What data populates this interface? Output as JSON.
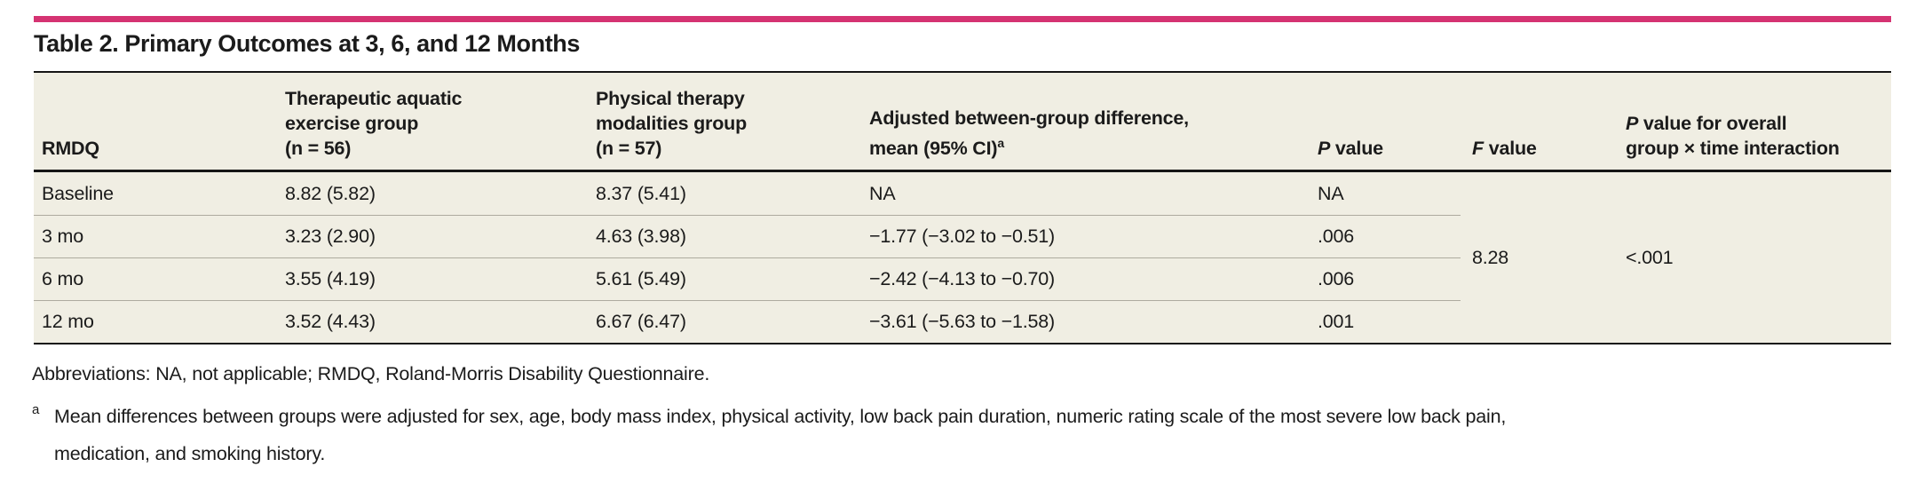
{
  "colors": {
    "accent": "#d53372",
    "table_bg": "#f0eee3",
    "rule": "#161616",
    "separator": "#aeab9f",
    "text": "#1b1b1b"
  },
  "title": "Table 2. Primary Outcomes at 3, 6, and 12 Months",
  "table": {
    "headers": {
      "row_label": "RMDQ",
      "aquatic": "Therapeutic aquatic\nexercise group\n(n = 56)",
      "modalities": "Physical therapy\nmodalities group\n(n = 57)",
      "diff": "Adjusted between-group difference,\nmean (95% CI)",
      "diff_sup": "a",
      "p_italic": "P",
      "p_rest": " value",
      "f_italic": "F",
      "f_rest": " value",
      "interaction_italic": "P",
      "interaction_rest": " value for overall\ngroup × time interaction"
    },
    "rows": [
      {
        "label": "Baseline",
        "aquatic": "8.82 (5.82)",
        "modalities": "8.37 (5.41)",
        "diff": "NA",
        "p": "NA"
      },
      {
        "label": "3 mo",
        "aquatic": "3.23 (2.90)",
        "modalities": "4.63 (3.98)",
        "diff": "−1.77 (−3.02 to −0.51)",
        "p": ".006"
      },
      {
        "label": "6 mo",
        "aquatic": "3.55 (4.19)",
        "modalities": "5.61 (5.49)",
        "diff": "−2.42 (−4.13 to −0.70)",
        "p": ".006"
      },
      {
        "label": "12 mo",
        "aquatic": "3.52 (4.43)",
        "modalities": "6.67 (6.47)",
        "diff": "−3.61 (−5.63 to −1.58)",
        "p": ".001"
      }
    ],
    "f_value": "8.28",
    "interaction_p": "<.001"
  },
  "footer": {
    "abbreviations": "Abbreviations: NA, not applicable; RMDQ, Roland-Morris Disability Questionnaire.",
    "footnote_marker": "a",
    "footnote_text": "Mean differences between groups were adjusted for sex, age, body mass index, physical activity, low back pain duration, numeric rating scale of the most severe low back pain,\nmedication, and smoking history."
  }
}
